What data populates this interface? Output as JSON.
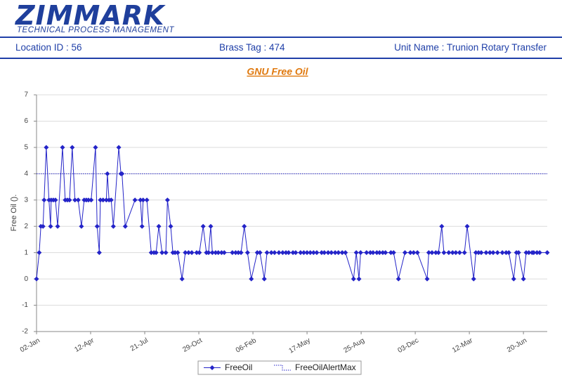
{
  "header": {
    "logo": "ZIMMARK",
    "tagline": "TECHNICAL PROCESS MANAGEMENT"
  },
  "info": {
    "location": "Location ID : 56",
    "brass_tag": "Brass Tag : 474",
    "unit_name": "Unit Name : Trunion Rotary Transfer"
  },
  "chart_data": {
    "type": "line",
    "title": "GNU Free Oil",
    "y_label": "Free Oil ().",
    "x": [
      0,
      5,
      8,
      12,
      14,
      18,
      23,
      26,
      27,
      31,
      35,
      39,
      48,
      53,
      57,
      61,
      66,
      71,
      77,
      83,
      88,
      92,
      96,
      101,
      109,
      112,
      116,
      118,
      123,
      129,
      131,
      134,
      138,
      142,
      152,
      156,
      158,
      164,
      182,
      192,
      195,
      197,
      204,
      212,
      217,
      221,
      226,
      232,
      239,
      242,
      248,
      252,
      256,
      261,
      269,
      275,
      281,
      287,
      296,
      301,
      308,
      314,
      318,
      322,
      325,
      331,
      336,
      342,
      347,
      362,
      368,
      373,
      378,
      384,
      390,
      397,
      408,
      413,
      421,
      426,
      434,
      440,
      448,
      455,
      461,
      466,
      474,
      479,
      488,
      494,
      500,
      506,
      512,
      518,
      527,
      532,
      539,
      545,
      552,
      558,
      565,
      571,
      586,
      591,
      596,
      599,
      610,
      617,
      622,
      629,
      634,
      640,
      645,
      655,
      660,
      669,
      681,
      691,
      697,
      704,
      722,
      725,
      731,
      738,
      743,
      749,
      753,
      762,
      769,
      775,
      782,
      791,
      796,
      808,
      812,
      817,
      822,
      831,
      838,
      844,
      852,
      861,
      868,
      873,
      882,
      887,
      891,
      900,
      905,
      910,
      916,
      919,
      925,
      930,
      944
    ],
    "series": [
      {
        "name": "FreeOil",
        "color": "#2424c8",
        "values": [
          0,
          1,
          2,
          2,
          3,
          5,
          3,
          2,
          3,
          3,
          3,
          2,
          5,
          3,
          3,
          3,
          5,
          3,
          3,
          2,
          3,
          3,
          3,
          3,
          5,
          2,
          1,
          3,
          3,
          3,
          4,
          3,
          3,
          2,
          5,
          4,
          4,
          2,
          3,
          3,
          2,
          3,
          3,
          1,
          1,
          1,
          2,
          1,
          1,
          3,
          2,
          1,
          1,
          1,
          0,
          1,
          1,
          1,
          1,
          1,
          2,
          1,
          1,
          2,
          1,
          1,
          1,
          1,
          1,
          1,
          1,
          1,
          1,
          2,
          1,
          0,
          1,
          1,
          0,
          1,
          1,
          1,
          1,
          1,
          1,
          1,
          1,
          1,
          1,
          1,
          1,
          1,
          1,
          1,
          1,
          1,
          1,
          1,
          1,
          1,
          1,
          1,
          0,
          1,
          0,
          1,
          1,
          1,
          1,
          1,
          1,
          1,
          1,
          1,
          1,
          0,
          1,
          1,
          1,
          1,
          0,
          1,
          1,
          1,
          1,
          2,
          1,
          1,
          1,
          1,
          1,
          1,
          2,
          0,
          1,
          1,
          1,
          1,
          1,
          1,
          1,
          1,
          1,
          1,
          0,
          1,
          1,
          0,
          1,
          1,
          1,
          1,
          1,
          1,
          1
        ]
      }
    ],
    "reference_lines": [
      {
        "name": "FreeOilAlertMax",
        "value": 4,
        "color": "#2424c8"
      }
    ],
    "xlim": [
      0,
      944
    ],
    "xticks": [
      {
        "value": 0,
        "label": "02-Jan"
      },
      {
        "value": 100,
        "label": "12-Apr"
      },
      {
        "value": 200,
        "label": "21-Jul"
      },
      {
        "value": 300,
        "label": "29-Oct"
      },
      {
        "value": 400,
        "label": "06-Feb"
      },
      {
        "value": 500,
        "label": "17-May"
      },
      {
        "value": 600,
        "label": "25-Aug"
      },
      {
        "value": 700,
        "label": "03-Dec"
      },
      {
        "value": 800,
        "label": "12-Mar"
      },
      {
        "value": 900,
        "label": "20-Jun"
      }
    ],
    "ylim": [
      -2,
      7
    ],
    "yticks": [
      -2,
      -1,
      0,
      1,
      2,
      3,
      4,
      5,
      6,
      7
    ],
    "grid": true
  }
}
